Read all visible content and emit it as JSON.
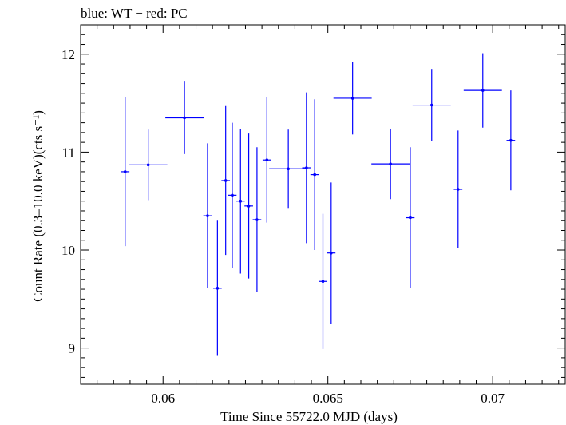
{
  "chart_data": {
    "type": "scatter",
    "title": "blue: WT − red: PC",
    "xlabel": "Time Since 55722.0 MJD (days)",
    "ylabel": "Count Rate (0.3–10.0 keV)(cts s⁻¹)",
    "xlim": [
      0.0575,
      0.0722
    ],
    "ylim": [
      8.63,
      12.3
    ],
    "x_ticks": [
      0.06,
      0.065,
      0.07
    ],
    "x_tick_labels": [
      "0.06",
      "0.065",
      "0.07"
    ],
    "y_ticks": [
      9,
      10,
      11,
      12
    ],
    "y_tick_labels": [
      "9",
      "10",
      "11",
      "12"
    ],
    "grid": false,
    "colors": {
      "WT": "#0000ff",
      "PC": "#ff0000"
    },
    "series": [
      {
        "mode": "WT",
        "points": [
          {
            "x": 0.05885,
            "y": 10.8,
            "xerr": 0.00013,
            "yerr": 0.76
          },
          {
            "x": 0.05955,
            "y": 10.87,
            "xerr": 0.00058,
            "yerr": 0.36
          },
          {
            "x": 0.06065,
            "y": 11.35,
            "xerr": 0.00058,
            "yerr": 0.37
          },
          {
            "x": 0.06135,
            "y": 10.35,
            "xerr": 0.00013,
            "yerr": 0.74
          },
          {
            "x": 0.06165,
            "y": 9.61,
            "xerr": 0.00013,
            "yerr": 0.69
          },
          {
            "x": 0.0619,
            "y": 10.71,
            "xerr": 0.00013,
            "yerr": 0.76
          },
          {
            "x": 0.0621,
            "y": 10.56,
            "xerr": 0.00013,
            "yerr": 0.74
          },
          {
            "x": 0.06235,
            "y": 10.5,
            "xerr": 0.00013,
            "yerr": 0.74
          },
          {
            "x": 0.0626,
            "y": 10.45,
            "xerr": 0.00013,
            "yerr": 0.74
          },
          {
            "x": 0.06285,
            "y": 10.31,
            "xerr": 0.00013,
            "yerr": 0.74
          },
          {
            "x": 0.06315,
            "y": 10.92,
            "xerr": 0.00013,
            "yerr": 0.64
          },
          {
            "x": 0.0638,
            "y": 10.83,
            "xerr": 0.00058,
            "yerr": 0.4
          },
          {
            "x": 0.06435,
            "y": 10.84,
            "xerr": 0.00013,
            "yerr": 0.77
          },
          {
            "x": 0.0646,
            "y": 10.77,
            "xerr": 0.00013,
            "yerr": 0.77
          },
          {
            "x": 0.06485,
            "y": 9.68,
            "xerr": 0.00013,
            "yerr": 0.69
          },
          {
            "x": 0.0651,
            "y": 9.97,
            "xerr": 0.00013,
            "yerr": 0.72
          },
          {
            "x": 0.06575,
            "y": 11.55,
            "xerr": 0.00058,
            "yerr": 0.37
          },
          {
            "x": 0.0669,
            "y": 10.88,
            "xerr": 0.00058,
            "yerr": 0.36
          },
          {
            "x": 0.0675,
            "y": 10.33,
            "xerr": 0.00013,
            "yerr": 0.72
          },
          {
            "x": 0.06815,
            "y": 11.48,
            "xerr": 0.00058,
            "yerr": 0.37
          },
          {
            "x": 0.06895,
            "y": 10.62,
            "xerr": 0.00013,
            "yerr": 0.6
          },
          {
            "x": 0.0697,
            "y": 11.63,
            "xerr": 0.00058,
            "yerr": 0.38
          },
          {
            "x": 0.07055,
            "y": 11.12,
            "xerr": 0.00013,
            "yerr": 0.51
          }
        ]
      }
    ]
  }
}
